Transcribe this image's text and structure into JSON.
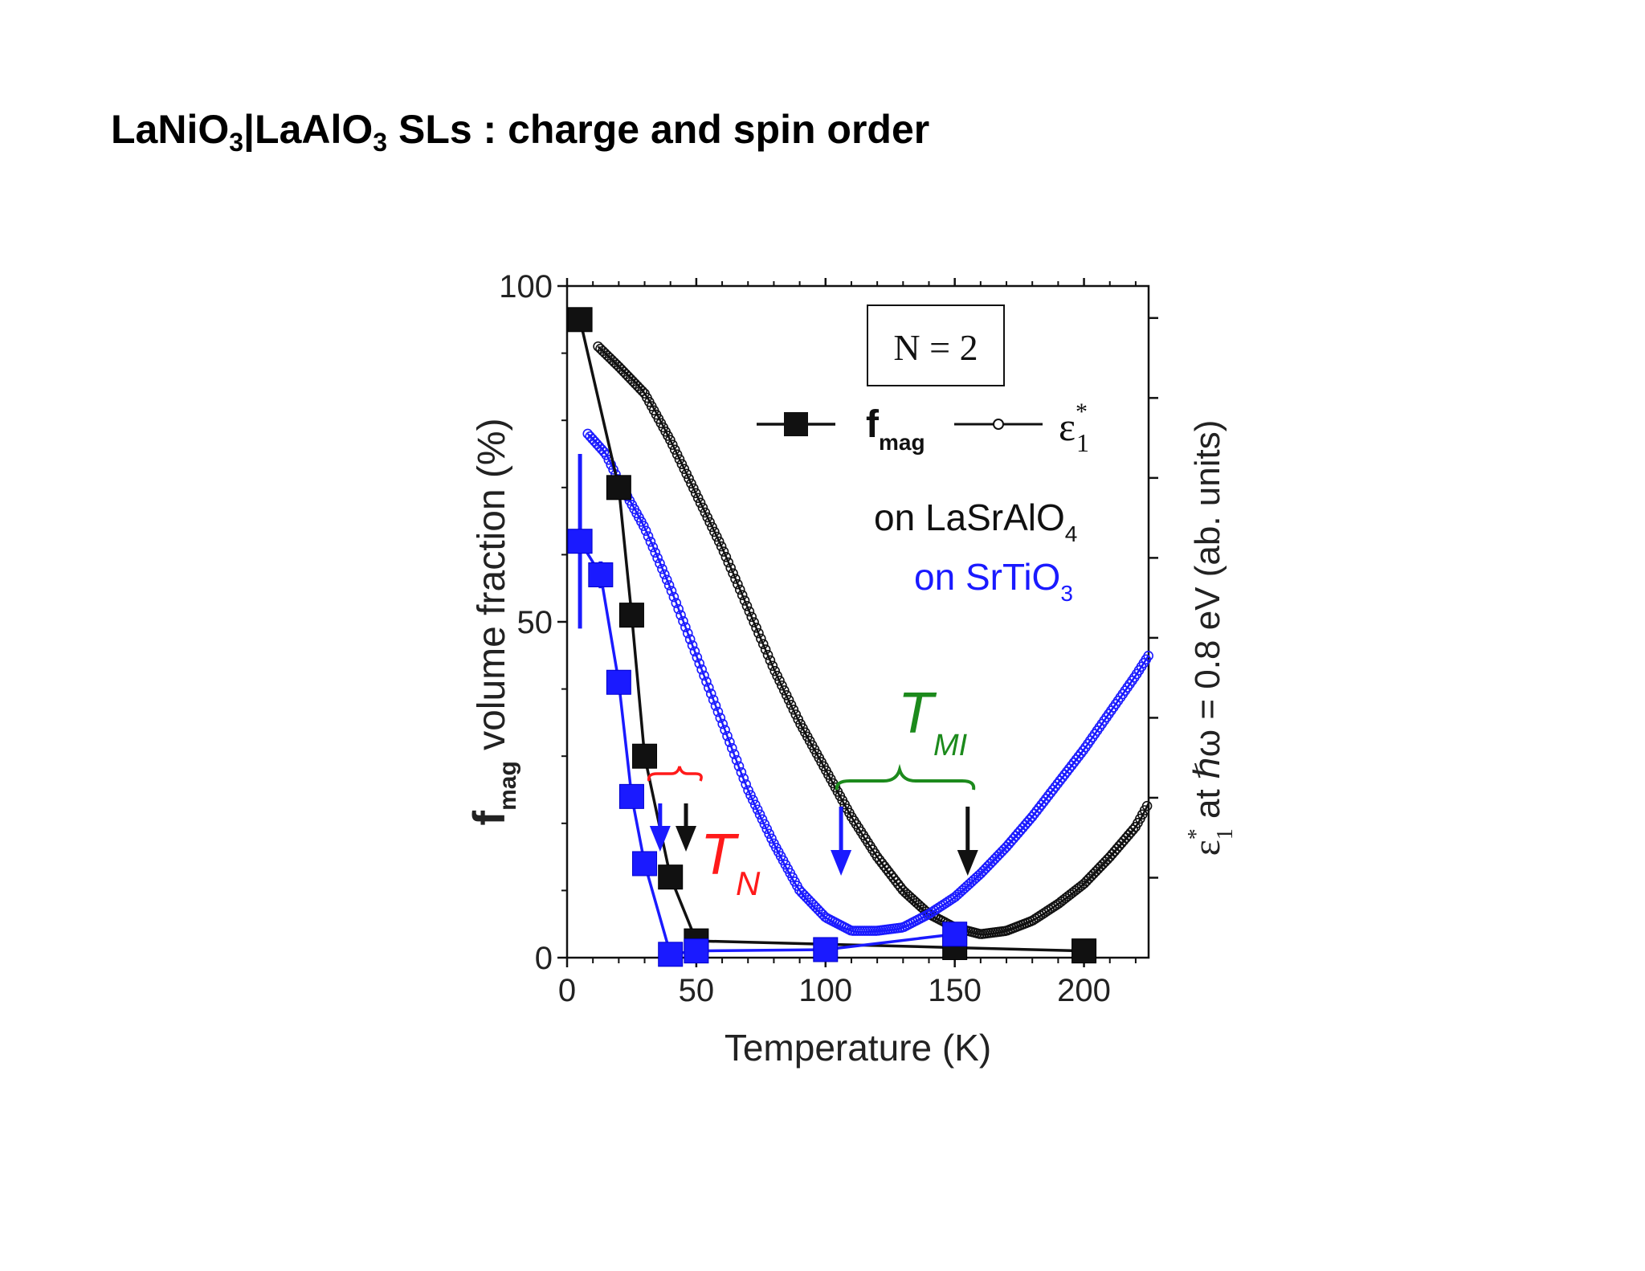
{
  "slide": {
    "title_parts": [
      "LaNiO",
      "3",
      "|LaAlO",
      "3",
      " SLs : charge and spin order"
    ]
  },
  "chart_data": {
    "type": "scatter",
    "xlabel": "Temperature (K)",
    "ylabel": {
      "main": "f",
      "sub": "mag",
      "rest": " volume fraction (%)"
    },
    "y2label": {
      "main": "ε",
      "sup": "*",
      "sub": "1",
      "rest": " at ℏω = 0.8 eV (ab. units)"
    },
    "xlim": [
      0,
      225
    ],
    "ylim": [
      0,
      100
    ],
    "xticks": [
      0,
      50,
      100,
      150,
      200
    ],
    "yticks": [
      0,
      50,
      100
    ],
    "grid": false,
    "legend_position": "top-right",
    "sample_box": "N = 2",
    "legend": [
      {
        "main": "f",
        "sub": "mag",
        "marker": "filled-square"
      },
      {
        "main": "ε",
        "sup": "*",
        "sub": "1",
        "marker": "open-circle"
      }
    ],
    "substrates": [
      {
        "prefix": "on LaSrAlO",
        "sub": "4",
        "color": "#111111"
      },
      {
        "prefix": "on SrTiO",
        "sub": "3",
        "color": "#1a1aff"
      }
    ],
    "annotations": {
      "tn": {
        "main": "T",
        "sub": "N",
        "color": "#ff1a1a"
      },
      "tmi": {
        "main": "T",
        "sub": "MI",
        "color": "#1c8a1c"
      }
    },
    "arrows": [
      {
        "x": 36,
        "color": "#1a1aff"
      },
      {
        "x": 46,
        "color": "#111111"
      },
      {
        "x": 106,
        "color": "#1a1aff"
      },
      {
        "x": 155,
        "color": "#111111"
      }
    ],
    "series": [
      {
        "name": "f_mag on LaSrAlO4",
        "color": "#111111",
        "x": [
          5,
          20,
          25,
          30,
          40,
          50,
          150,
          200
        ],
        "y": [
          95,
          70,
          51,
          30,
          12,
          2.5,
          1.5,
          1
        ],
        "yerr": [
          0,
          0,
          0,
          0,
          0,
          0,
          0,
          0
        ]
      },
      {
        "name": "f_mag on SrTiO3",
        "color": "#1a1aff",
        "x": [
          5,
          13,
          20,
          25,
          30,
          40,
          50,
          100,
          150
        ],
        "y": [
          62,
          57,
          41,
          24,
          14,
          0.5,
          1,
          1.2,
          3.5
        ],
        "yerr": [
          13,
          2,
          0,
          0,
          0,
          0,
          0,
          0,
          0
        ]
      },
      {
        "name": "ε1* on LaSrAlO4",
        "color": "#111111",
        "x": [
          12,
          20,
          30,
          40,
          50,
          60,
          70,
          80,
          90,
          100,
          110,
          120,
          130,
          140,
          150,
          160,
          170,
          180,
          190,
          200,
          210,
          220,
          225
        ],
        "y": [
          91,
          88,
          84,
          77,
          69,
          61,
          52,
          43,
          35,
          28,
          21,
          15,
          10,
          6.5,
          4.5,
          3.5,
          4,
          5.5,
          8,
          11,
          15,
          19.5,
          23
        ]
      },
      {
        "name": "ε1* on SrTiO3",
        "color": "#1a1aff",
        "x": [
          8,
          15,
          20,
          30,
          40,
          50,
          60,
          70,
          80,
          90,
          100,
          110,
          120,
          130,
          140,
          150,
          160,
          170,
          180,
          190,
          200,
          210,
          220,
          225
        ],
        "y": [
          78,
          75,
          71,
          64,
          55,
          45,
          35,
          25,
          17,
          10,
          6,
          4,
          4,
          4.5,
          6.5,
          9,
          12.5,
          16.5,
          21,
          26,
          31,
          36.5,
          42,
          45
        ]
      }
    ]
  }
}
